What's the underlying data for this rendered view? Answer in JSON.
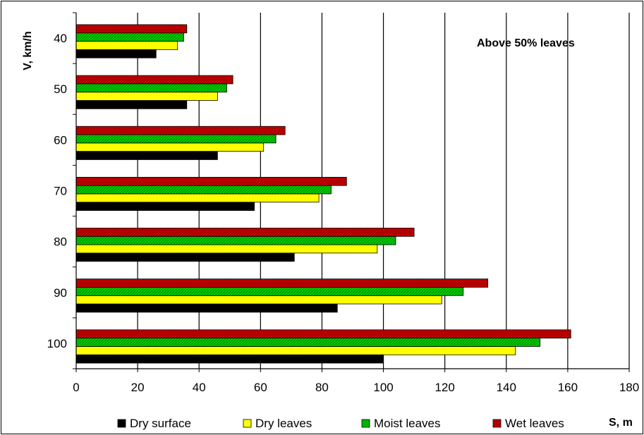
{
  "chart_data": {
    "type": "bar",
    "orientation": "horizontal",
    "categories": [
      "40",
      "50",
      "60",
      "70",
      "80",
      "90",
      "100"
    ],
    "series": [
      {
        "name": "Dry surface",
        "color": "#000000",
        "values": [
          26,
          36,
          46,
          58,
          71,
          85,
          100
        ]
      },
      {
        "name": "Dry leaves",
        "color": "#ffff00",
        "values": [
          33,
          46,
          61,
          79,
          98,
          119,
          143
        ]
      },
      {
        "name": "Moist leaves",
        "color": "#00cc00",
        "values": [
          35,
          49,
          65,
          83,
          104,
          126,
          151
        ]
      },
      {
        "name": "Wet leaves",
        "color": "#cc0000",
        "values": [
          36,
          51,
          68,
          88,
          110,
          134,
          161
        ]
      }
    ],
    "xlim": [
      0,
      180
    ],
    "x_ticks": [
      "0",
      "20",
      "40",
      "60",
      "80",
      "100",
      "120",
      "140",
      "160",
      "180"
    ],
    "xlabel": "S, m",
    "ylabel": "V, km/h",
    "annotation": "Above 50% leaves",
    "grid": "vertical",
    "legend_position": "bottom"
  }
}
